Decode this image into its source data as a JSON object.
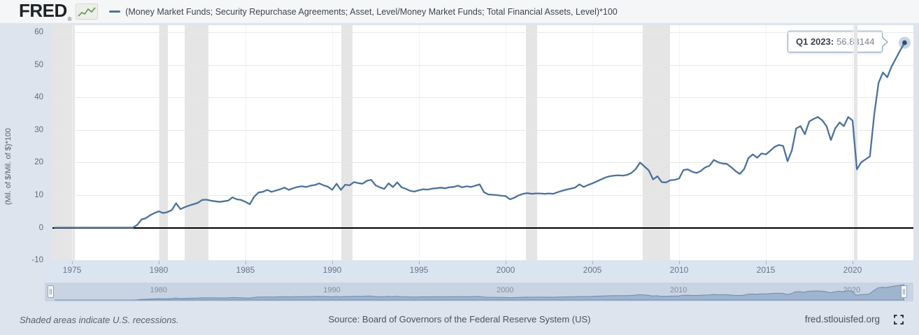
{
  "header": {
    "logo": "FRED",
    "logo_reg": "®",
    "legend_label": "(Money Market Funds; Security Repurchase Agreements; Asset, Level/Money Market Funds; Total Financial Assets, Level)*100"
  },
  "tooltip": {
    "label": "Q1 2023:",
    "value": "56.83144"
  },
  "y_axis": {
    "title": "(Mil. of $/Mil. of $)*100",
    "ticks": [
      60,
      50,
      40,
      30,
      20,
      10,
      0,
      -10
    ]
  },
  "x_axis": {
    "ticks": [
      1975,
      1980,
      1985,
      1990,
      1995,
      2000,
      2005,
      2010,
      2015,
      2020
    ]
  },
  "brush": {
    "labels": [
      1980,
      1990,
      2000,
      2010,
      2020
    ]
  },
  "footer": {
    "note": "Shaded areas indicate U.S. recessions.",
    "source": "Source: Board of Governors of the Federal Reserve System (US)",
    "site": "fred.stlouisfed.org"
  },
  "colors": {
    "line": "#4c729c",
    "marker": "#2d4f77",
    "recession_band": "#e5e5e5",
    "brush_fill": "#9fb4ce",
    "brush_stroke": "#6e8aab",
    "tooltip_border": "#8ba6c4"
  },
  "chart_data": {
    "type": "line",
    "title": "(Money Market Funds; Security Repurchase Agreements; Asset, Level/Money Market Funds; Total Financial Assets, Level)*100",
    "xlabel": "",
    "ylabel": "(Mil. of $/Mil. of $)*100",
    "ylim": [
      -10,
      60
    ],
    "xlim": [
      1973.9,
      2023.5
    ],
    "grid": true,
    "legend_position": "top-left",
    "frequency": "quarterly",
    "start": "1974-Q1",
    "end": "2023-Q1",
    "last_point": {
      "label": "Q1 2023",
      "value": 56.83144
    },
    "values": [
      0,
      0,
      0,
      0,
      0,
      0,
      0,
      0,
      0,
      0,
      0,
      0,
      0,
      0,
      0,
      0,
      0,
      0,
      0,
      0.8,
      2.5,
      2.9,
      3.8,
      4.5,
      5.0,
      4.5,
      4.8,
      5.4,
      7.5,
      5.7,
      6.3,
      6.8,
      7.2,
      7.6,
      8.5,
      8.6,
      8.3,
      8.1,
      7.9,
      8.1,
      8.3,
      9.3,
      8.7,
      8.5,
      7.9,
      7.2,
      9.5,
      10.8,
      11.0,
      11.6,
      11.0,
      11.4,
      11.8,
      12.3,
      11.6,
      12.1,
      12.5,
      12.7,
      12.5,
      12.9,
      13.1,
      13.6,
      13.0,
      12.6,
      11.6,
      13.5,
      11.6,
      13.2,
      13.0,
      14.0,
      13.7,
      13.5,
      14.4,
      14.7,
      13.0,
      12.4,
      11.9,
      13.6,
      12.5,
      13.9,
      12.4,
      11.9,
      11.3,
      11.1,
      11.5,
      11.8,
      11.7,
      12.0,
      12.1,
      12.3,
      12.1,
      12.4,
      12.5,
      12.9,
      12.4,
      12.7,
      12.5,
      12.9,
      13.3,
      10.9,
      10.2,
      10.1,
      10.0,
      9.8,
      9.7,
      8.7,
      9.2,
      9.9,
      10.4,
      10.6,
      10.4,
      10.5,
      10.5,
      10.4,
      10.5,
      10.4,
      10.9,
      11.3,
      11.7,
      12.0,
      12.3,
      13.3,
      12.5,
      13.1,
      13.6,
      14.2,
      14.8,
      15.4,
      15.8,
      16.0,
      16.1,
      16.0,
      16.2,
      16.8,
      18.0,
      20.0,
      18.8,
      17.6,
      14.8,
      15.8,
      14.0,
      13.9,
      14.6,
      14.7,
      15.1,
      17.7,
      17.9,
      17.2,
      16.8,
      17.4,
      18.5,
      19.0,
      20.8,
      20.1,
      19.7,
      19.6,
      18.6,
      17.4,
      16.5,
      18.0,
      21.4,
      22.5,
      21.5,
      22.8,
      22.5,
      23.6,
      24.8,
      25.4,
      25.1,
      20.4,
      23.7,
      30.5,
      31.2,
      28.7,
      32.6,
      33.4,
      34.0,
      33.0,
      31.2,
      26.9,
      30.5,
      32.3,
      31.2,
      34.0,
      32.9,
      17.9,
      20.1,
      21.0,
      21.9,
      34.8,
      44.5,
      47.7,
      46.2,
      49.5,
      52.0,
      54.5,
      56.83144
    ],
    "recessions": [
      [
        1973.87,
        1975.17
      ],
      [
        1980.0,
        1980.54
      ],
      [
        1981.5,
        1982.88
      ],
      [
        1990.54,
        1991.17
      ],
      [
        2001.17,
        2001.83
      ],
      [
        2007.92,
        2009.46
      ],
      [
        2020.08,
        2020.29
      ]
    ]
  }
}
